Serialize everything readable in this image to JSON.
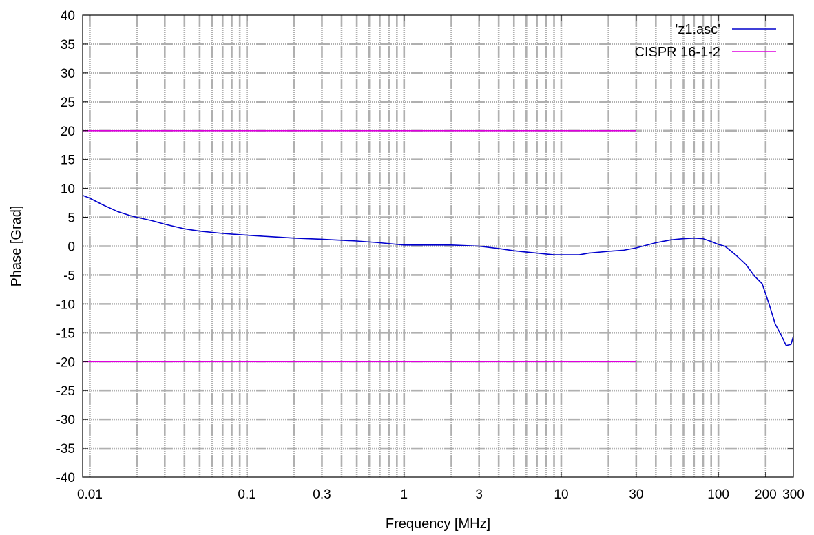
{
  "chart_data": {
    "type": "line",
    "title": "",
    "xlabel": "Frequency [MHz]",
    "ylabel": "Phase [Grad]",
    "x_scale": "log",
    "xlim": [
      0.009,
      300
    ],
    "ylim": [
      -40,
      40
    ],
    "grid": true,
    "legend_position": "top-right",
    "x_tick_values": [
      0.01,
      0.1,
      0.3,
      1,
      3,
      10,
      30,
      100,
      200,
      300
    ],
    "x_tick_labels": [
      "0.01",
      "0.1",
      "0.3",
      "1",
      "3",
      "10",
      "30",
      "100",
      "200",
      "300"
    ],
    "y_tick_values": [
      -40,
      -35,
      -30,
      -25,
      -20,
      -15,
      -10,
      -5,
      0,
      5,
      10,
      15,
      20,
      25,
      30,
      35,
      40
    ],
    "y_tick_labels": [
      "-40",
      "-35",
      "-30",
      "-25",
      "-20",
      "-15",
      "-10",
      "-5",
      "0",
      "5",
      "10",
      "15",
      "20",
      "25",
      "30",
      "35",
      "40"
    ],
    "series": [
      {
        "name": "'z1.asc'",
        "color": "#0000cc",
        "x": [
          0.009,
          0.01,
          0.012,
          0.015,
          0.018,
          0.02,
          0.025,
          0.03,
          0.04,
          0.05,
          0.07,
          0.1,
          0.15,
          0.2,
          0.3,
          0.5,
          0.7,
          1.0,
          1.5,
          2.0,
          3.0,
          4.0,
          5.0,
          7.0,
          9.0,
          10.0,
          13.0,
          15.0,
          20.0,
          25.0,
          30.0,
          40.0,
          50.0,
          60.0,
          70.0,
          80.0,
          90.0,
          100.0,
          110.0,
          130.0,
          150.0,
          170.0,
          190.0,
          210.0,
          230.0,
          250.0,
          270.0,
          290.0,
          300.0
        ],
        "y": [
          8.8,
          8.3,
          7.2,
          6.0,
          5.3,
          5.0,
          4.4,
          3.8,
          3.0,
          2.6,
          2.2,
          1.9,
          1.6,
          1.4,
          1.2,
          0.9,
          0.6,
          0.2,
          0.2,
          0.2,
          0.0,
          -0.4,
          -0.8,
          -1.2,
          -1.5,
          -1.5,
          -1.5,
          -1.2,
          -0.9,
          -0.7,
          -0.3,
          0.6,
          1.1,
          1.3,
          1.4,
          1.3,
          0.8,
          0.3,
          0.0,
          -1.6,
          -3.2,
          -5.2,
          -6.5,
          -10.0,
          -13.5,
          -15.3,
          -17.2,
          -17.0,
          -15.6
        ]
      },
      {
        "name": "CISPR 16-1-2",
        "color": "#dd00dd",
        "segments": [
          {
            "x": [
              0.009,
              30
            ],
            "y": [
              20,
              20
            ]
          },
          {
            "x": [
              0.009,
              30
            ],
            "y": [
              -20,
              -20
            ]
          }
        ]
      }
    ]
  }
}
